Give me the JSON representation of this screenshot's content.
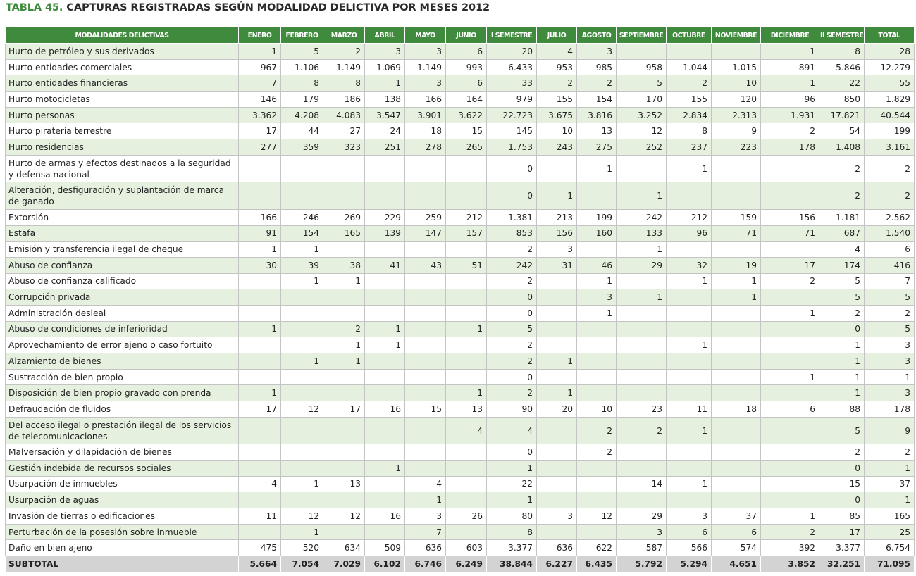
{
  "title": {
    "label": "TABLA 45.",
    "text": "CAPTURAS REGISTRADAS SEGÚN MODALIDAD DELICTIVA POR MESES 2012"
  },
  "columns": [
    "MODALIDADES DELICTIVAS",
    "ENERO",
    "FEBRERO",
    "MARZO",
    "ABRIL",
    "MAYO",
    "JUNIO",
    "I SEMESTRE",
    "JULIO",
    "AGOSTO",
    "SEPTIEMBRE",
    "OCTUBRE",
    "NOVIEMBRE",
    "DICIEMBRE",
    "II SEMESTRE",
    "TOTAL"
  ],
  "rows": [
    {
      "name": "Hurto de petróleo y sus derivados",
      "values": [
        "1",
        "5",
        "2",
        "3",
        "3",
        "6",
        "20",
        "4",
        "3",
        "",
        "",
        "",
        "1",
        "8",
        "28"
      ]
    },
    {
      "name": "Hurto entidades comerciales",
      "values": [
        "967",
        "1.106",
        "1.149",
        "1.069",
        "1.149",
        "993",
        "6.433",
        "953",
        "985",
        "958",
        "1.044",
        "1.015",
        "891",
        "5.846",
        "12.279"
      ]
    },
    {
      "name": "Hurto entidades financieras",
      "values": [
        "7",
        "8",
        "8",
        "1",
        "3",
        "6",
        "33",
        "2",
        "2",
        "5",
        "2",
        "10",
        "1",
        "22",
        "55"
      ]
    },
    {
      "name": "Hurto motocicletas",
      "values": [
        "146",
        "179",
        "186",
        "138",
        "166",
        "164",
        "979",
        "155",
        "154",
        "170",
        "155",
        "120",
        "96",
        "850",
        "1.829"
      ]
    },
    {
      "name": "Hurto personas",
      "values": [
        "3.362",
        "4.208",
        "4.083",
        "3.547",
        "3.901",
        "3.622",
        "22.723",
        "3.675",
        "3.816",
        "3.252",
        "2.834",
        "2.313",
        "1.931",
        "17.821",
        "40.544"
      ]
    },
    {
      "name": "Hurto piratería terrestre",
      "values": [
        "17",
        "44",
        "27",
        "24",
        "18",
        "15",
        "145",
        "10",
        "13",
        "12",
        "8",
        "9",
        "2",
        "54",
        "199"
      ]
    },
    {
      "name": "Hurto residencias",
      "values": [
        "277",
        "359",
        "323",
        "251",
        "278",
        "265",
        "1.753",
        "243",
        "275",
        "252",
        "237",
        "223",
        "178",
        "1.408",
        "3.161"
      ]
    },
    {
      "name": "Hurto de armas y efectos destinados a la seguridad y defensa nacional",
      "tall": true,
      "values": [
        "",
        "",
        "",
        "",
        "",
        "",
        "0",
        "",
        "1",
        "",
        "1",
        "",
        "",
        "2",
        "2"
      ]
    },
    {
      "name": "Alteración, desfiguración y suplantación de marca de ganado",
      "tall": true,
      "values": [
        "",
        "",
        "",
        "",
        "",
        "",
        "0",
        "1",
        "",
        "1",
        "",
        "",
        "",
        "2",
        "2"
      ]
    },
    {
      "name": "Extorsión",
      "values": [
        "166",
        "246",
        "269",
        "229",
        "259",
        "212",
        "1.381",
        "213",
        "199",
        "242",
        "212",
        "159",
        "156",
        "1.181",
        "2.562"
      ]
    },
    {
      "name": "Estafa",
      "values": [
        "91",
        "154",
        "165",
        "139",
        "147",
        "157",
        "853",
        "156",
        "160",
        "133",
        "96",
        "71",
        "71",
        "687",
        "1.540"
      ]
    },
    {
      "name": "Emisión y transferencia ilegal de cheque",
      "values": [
        "1",
        "1",
        "",
        "",
        "",
        "",
        "2",
        "3",
        "",
        "1",
        "",
        "",
        "",
        "4",
        "6"
      ]
    },
    {
      "name": "Abuso de confianza",
      "values": [
        "30",
        "39",
        "38",
        "41",
        "43",
        "51",
        "242",
        "31",
        "46",
        "29",
        "32",
        "19",
        "17",
        "174",
        "416"
      ]
    },
    {
      "name": "Abuso de confianza calificado",
      "values": [
        "",
        "1",
        "1",
        "",
        "",
        "",
        "2",
        "",
        "1",
        "",
        "1",
        "1",
        "2",
        "5",
        "7"
      ]
    },
    {
      "name": "Corrupción privada",
      "values": [
        "",
        "",
        "",
        "",
        "",
        "",
        "0",
        "",
        "3",
        "1",
        "",
        "1",
        "",
        "5",
        "5"
      ]
    },
    {
      "name": "Administración desleal",
      "values": [
        "",
        "",
        "",
        "",
        "",
        "",
        "0",
        "",
        "1",
        "",
        "",
        "",
        "1",
        "2",
        "2"
      ]
    },
    {
      "name": "Abuso de condiciones de inferioridad",
      "values": [
        "1",
        "",
        "2",
        "1",
        "",
        "1",
        "5",
        "",
        "",
        "",
        "",
        "",
        "",
        "0",
        "5"
      ]
    },
    {
      "name": "Aprovechamiento de error ajeno o caso fortuito",
      "values": [
        "",
        "",
        "1",
        "1",
        "",
        "",
        "2",
        "",
        "",
        "",
        "1",
        "",
        "",
        "1",
        "3"
      ]
    },
    {
      "name": "Alzamiento de bienes",
      "values": [
        "",
        "1",
        "1",
        "",
        "",
        "",
        "2",
        "1",
        "",
        "",
        "",
        "",
        "",
        "1",
        "3"
      ]
    },
    {
      "name": "Sustracción de bien propio",
      "values": [
        "",
        "",
        "",
        "",
        "",
        "",
        "0",
        "",
        "",
        "",
        "",
        "",
        "1",
        "1",
        "1"
      ]
    },
    {
      "name": "Disposición de bien propio gravado con prenda",
      "values": [
        "1",
        "",
        "",
        "",
        "",
        "1",
        "2",
        "1",
        "",
        "",
        "",
        "",
        "",
        "1",
        "3"
      ]
    },
    {
      "name": "Defraudación de fluidos",
      "values": [
        "17",
        "12",
        "17",
        "16",
        "15",
        "13",
        "90",
        "20",
        "10",
        "23",
        "11",
        "18",
        "6",
        "88",
        "178"
      ]
    },
    {
      "name": "Del acceso ilegal o prestación ilegal de los servicios de telecomunicaciones",
      "tall": true,
      "values": [
        "",
        "",
        "",
        "",
        "",
        "4",
        "4",
        "",
        "2",
        "2",
        "1",
        "",
        "",
        "5",
        "9"
      ]
    },
    {
      "name": "Malversación y dilapidación de bienes",
      "values": [
        "",
        "",
        "",
        "",
        "",
        "",
        "0",
        "",
        "2",
        "",
        "",
        "",
        "",
        "2",
        "2"
      ]
    },
    {
      "name": "Gestión indebida de recursos sociales",
      "values": [
        "",
        "",
        "",
        "1",
        "",
        "",
        "1",
        "",
        "",
        "",
        "",
        "",
        "",
        "0",
        "1"
      ]
    },
    {
      "name": "Usurpación de inmuebles",
      "values": [
        "4",
        "1",
        "13",
        "",
        "4",
        "",
        "22",
        "",
        "",
        "14",
        "1",
        "",
        "",
        "15",
        "37"
      ]
    },
    {
      "name": "Usurpación de aguas",
      "values": [
        "",
        "",
        "",
        "",
        "1",
        "",
        "1",
        "",
        "",
        "",
        "",
        "",
        "",
        "0",
        "1"
      ]
    },
    {
      "name": "Invasión de tierras o edificaciones",
      "values": [
        "11",
        "12",
        "12",
        "16",
        "3",
        "26",
        "80",
        "3",
        "12",
        "29",
        "3",
        "37",
        "1",
        "85",
        "165"
      ]
    },
    {
      "name": "Perturbación de la posesión sobre inmueble",
      "values": [
        "",
        "1",
        "",
        "",
        "7",
        "",
        "8",
        "",
        "",
        "3",
        "6",
        "6",
        "2",
        "17",
        "25"
      ]
    },
    {
      "name": "Daño en bien ajeno",
      "values": [
        "475",
        "520",
        "634",
        "509",
        "636",
        "603",
        "3.377",
        "636",
        "622",
        "587",
        "566",
        "574",
        "392",
        "3.377",
        "6.754"
      ]
    }
  ],
  "subtotal": {
    "name": "SUBTOTAL",
    "values": [
      "5.664",
      "7.054",
      "7.029",
      "6.102",
      "6.746",
      "6.249",
      "38.844",
      "6.227",
      "6.435",
      "5.792",
      "5.294",
      "4.651",
      "3.852",
      "32.251",
      "71.095"
    ]
  },
  "colors": {
    "header_green": "#3f8a3d",
    "row_tint": "#e6f0df",
    "title_label": "#3d8a3a",
    "subtotal_gray": "#d3d3d3"
  }
}
